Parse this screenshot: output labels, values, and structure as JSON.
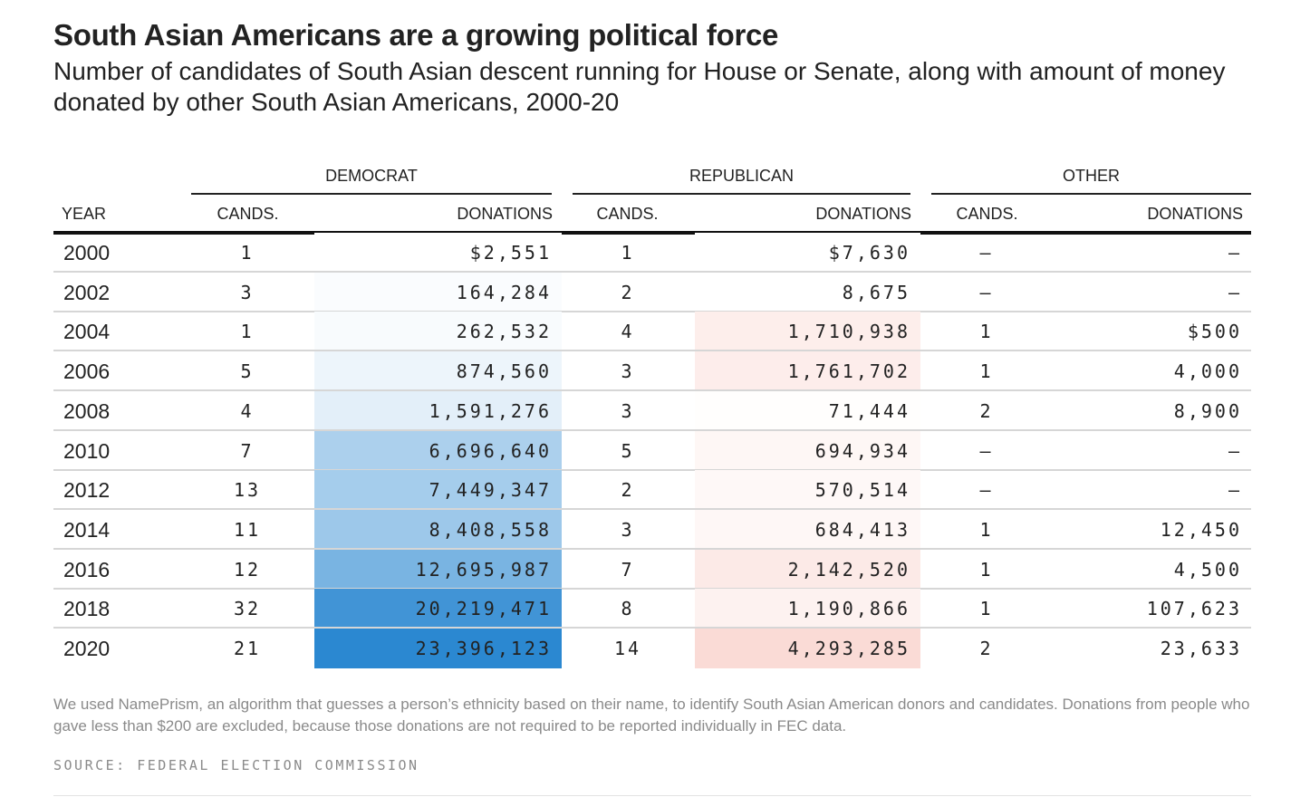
{
  "title": "South Asian Americans are a growing political force",
  "subtitle": "Number of candidates of South Asian descent running for House or Senate, along with amount of money donated by other South Asian Americans, 2000-20",
  "groups": {
    "democrat": "DEMOCRAT",
    "republican": "REPUBLICAN",
    "other": "OTHER"
  },
  "columns": {
    "year": "YEAR",
    "cands": "CANDS.",
    "donations": "DONATIONS"
  },
  "note": "We used NamePrism, an algorithm that guesses a person’s ethnicity based on their name, to identify South Asian American donors and candidates. Donations from people who gave less than $200 are excluded, because those donations are not required to be reported individually in FEC data.",
  "source": "SOURCE: FEDERAL ELECTION COMMISSION",
  "colors": {
    "democrat_max": "#2b88d1",
    "republican_max": "#fadbd6"
  },
  "chart_data": {
    "type": "table",
    "headers": [
      "YEAR",
      "DEMOCRAT CANDS.",
      "DEMOCRAT DONATIONS",
      "REPUBLICAN CANDS.",
      "REPUBLICAN DONATIONS",
      "OTHER CANDS.",
      "OTHER DONATIONS"
    ],
    "rows": [
      {
        "year": "2000",
        "dem_cands": "1",
        "dem_don": "$2,551",
        "rep_cands": "1",
        "rep_don": "$7,630",
        "oth_cands": "–",
        "oth_don": "–"
      },
      {
        "year": "2002",
        "dem_cands": "3",
        "dem_don": "164,284",
        "rep_cands": "2",
        "rep_don": "8,675",
        "oth_cands": "–",
        "oth_don": "–"
      },
      {
        "year": "2004",
        "dem_cands": "1",
        "dem_don": "262,532",
        "rep_cands": "4",
        "rep_don": "1,710,938",
        "oth_cands": "1",
        "oth_don": "$500"
      },
      {
        "year": "2006",
        "dem_cands": "5",
        "dem_don": "874,560",
        "rep_cands": "3",
        "rep_don": "1,761,702",
        "oth_cands": "1",
        "oth_don": "4,000"
      },
      {
        "year": "2008",
        "dem_cands": "4",
        "dem_don": "1,591,276",
        "rep_cands": "3",
        "rep_don": "71,444",
        "oth_cands": "2",
        "oth_don": "8,900"
      },
      {
        "year": "2010",
        "dem_cands": "7",
        "dem_don": "6,696,640",
        "rep_cands": "5",
        "rep_don": "694,934",
        "oth_cands": "–",
        "oth_don": "–"
      },
      {
        "year": "2012",
        "dem_cands": "13",
        "dem_don": "7,449,347",
        "rep_cands": "2",
        "rep_don": "570,514",
        "oth_cands": "–",
        "oth_don": "–"
      },
      {
        "year": "2014",
        "dem_cands": "11",
        "dem_don": "8,408,558",
        "rep_cands": "3",
        "rep_don": "684,413",
        "oth_cands": "1",
        "oth_don": "12,450"
      },
      {
        "year": "2016",
        "dem_cands": "12",
        "dem_don": "12,695,987",
        "rep_cands": "7",
        "rep_don": "2,142,520",
        "oth_cands": "1",
        "oth_don": "4,500"
      },
      {
        "year": "2018",
        "dem_cands": "32",
        "dem_don": "20,219,471",
        "rep_cands": "8",
        "rep_don": "1,190,866",
        "oth_cands": "1",
        "oth_don": "107,623"
      },
      {
        "year": "2020",
        "dem_cands": "21",
        "dem_don": "23,396,123",
        "rep_cands": "14",
        "rep_don": "4,293,285",
        "oth_cands": "2",
        "oth_don": "23,633"
      }
    ]
  }
}
